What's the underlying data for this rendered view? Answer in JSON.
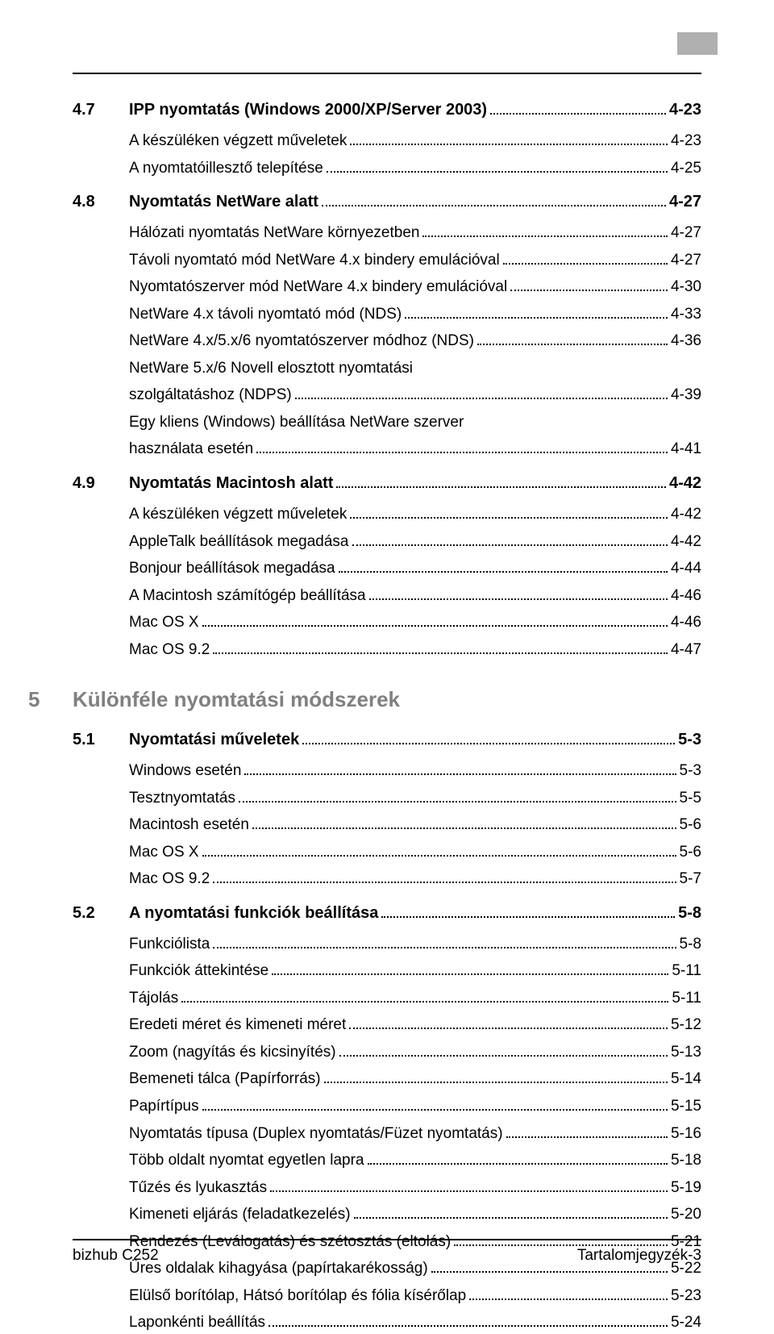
{
  "tab_marker_color": "#b0b0b0",
  "sections": [
    {
      "num": "4.7",
      "title": "IPP nyomtatás (Windows 2000/XP/Server 2003)",
      "page": "4-23",
      "items": [
        {
          "label": "A készüléken végzett műveletek",
          "page": "4-23"
        },
        {
          "label": "A nyomtatóillesztő telepítése",
          "page": "4-25"
        }
      ]
    },
    {
      "num": "4.8",
      "title": "Nyomtatás NetWare alatt",
      "page": "4-27",
      "items": [
        {
          "label": "Hálózati nyomtatás NetWare környezetben",
          "page": "4-27"
        },
        {
          "label": "Távoli nyomtató mód NetWare 4.x bindery emulációval",
          "page": "4-27"
        },
        {
          "label": "Nyomtatószerver mód NetWare 4.x bindery emulációval",
          "page": "4-30"
        },
        {
          "label": "NetWare 4.x távoli nyomtató mód (NDS)",
          "page": "4-33"
        },
        {
          "label": "NetWare 4.x/5.x/6 nyomtatószerver módhoz (NDS)",
          "page": "4-36"
        },
        {
          "label": "NetWare 5.x/6 Novell elosztott nyomtatási",
          "label2": "szolgáltatáshoz (NDPS)",
          "page": "4-39",
          "wrap": true
        },
        {
          "label": "Egy kliens (Windows) beállítása NetWare szerver",
          "label2": "használata esetén",
          "page": "4-41",
          "wrap": true
        }
      ]
    },
    {
      "num": "4.9",
      "title": "Nyomtatás Macintosh alatt",
      "page": "4-42",
      "items": [
        {
          "label": "A készüléken végzett műveletek",
          "page": "4-42"
        },
        {
          "label": "AppleTalk beállítások megadása",
          "page": "4-42"
        },
        {
          "label": "Bonjour beállítások megadása",
          "page": "4-44"
        },
        {
          "label": "A Macintosh számítógép beállítása",
          "page": "4-46"
        },
        {
          "label": "Mac OS X",
          "page": "4-46"
        },
        {
          "label": "Mac OS 9.2",
          "page": "4-47"
        }
      ]
    }
  ],
  "chapter": {
    "num": "5",
    "title": "Különféle nyomtatási módszerek"
  },
  "sections2": [
    {
      "num": "5.1",
      "title": "Nyomtatási műveletek",
      "page": "5-3",
      "items": [
        {
          "label": "Windows esetén",
          "page": "5-3"
        },
        {
          "label": "Tesztnyomtatás",
          "page": "5-5"
        },
        {
          "label": "Macintosh esetén",
          "page": "5-6"
        },
        {
          "label": "Mac OS X",
          "page": "5-6"
        },
        {
          "label": "Mac OS 9.2",
          "page": "5-7"
        }
      ]
    },
    {
      "num": "5.2",
      "title": "A nyomtatási funkciók beállítása",
      "page": "5-8",
      "items": [
        {
          "label": "Funkciólista",
          "page": "5-8"
        },
        {
          "label": "Funkciók áttekintése",
          "page": "5-11"
        },
        {
          "label": "Tájolás",
          "page": "5-11"
        },
        {
          "label": "Eredeti méret és kimeneti méret",
          "page": "5-12"
        },
        {
          "label": "Zoom (nagyítás és kicsinyítés)",
          "page": "5-13"
        },
        {
          "label": "Bemeneti tálca (Papírforrás)",
          "page": "5-14"
        },
        {
          "label": "Papírtípus",
          "page": "5-15"
        },
        {
          "label": "Nyomtatás típusa (Duplex nyomtatás/Füzet nyomtatás)",
          "page": "5-16"
        },
        {
          "label": "Több oldalt nyomtat egyetlen lapra",
          "page": "5-18"
        },
        {
          "label": "Tűzés és lyukasztás",
          "page": "5-19"
        },
        {
          "label": "Kimeneti eljárás (feladatkezelés)",
          "page": "5-20"
        },
        {
          "label": "Rendezés (Leválogatás) és szétosztás (eltolás)",
          "page": "5-21"
        },
        {
          "label": "Üres oldalak kihagyása (papírtakarékosság)",
          "page": "5-22"
        },
        {
          "label": "Elülső borítólap, Hátsó borítólap és fólia kísérőlap",
          "page": "5-23"
        },
        {
          "label": "Laponkénti beállítás",
          "page": "5-24"
        }
      ]
    }
  ],
  "footer": {
    "left": "bizhub C252",
    "right": "Tartalomjegyzék-3"
  }
}
